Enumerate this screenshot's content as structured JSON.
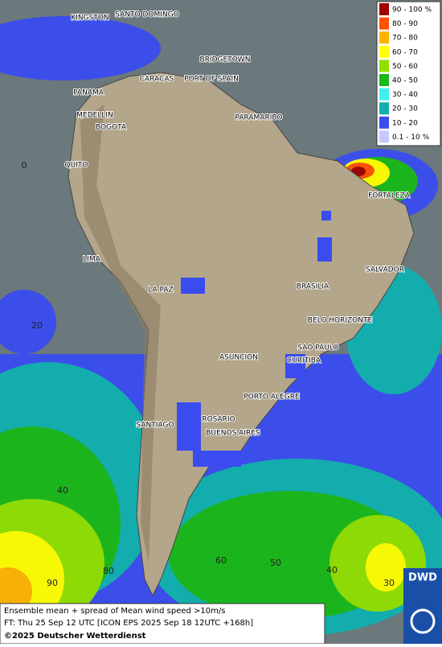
{
  "legend": [
    {
      "label": "90 - 100 %",
      "color": "#a00000"
    },
    {
      "label": "80 - 90",
      "color": "#ff5000"
    },
    {
      "label": "70 - 80",
      "color": "#ffb400"
    },
    {
      "label": "60 - 70",
      "color": "#ffff00"
    },
    {
      "label": "50 - 60",
      "color": "#90e000"
    },
    {
      "label": "40 - 50",
      "color": "#18b818"
    },
    {
      "label": "30 - 40",
      "color": "#40f0f0"
    },
    {
      "label": "20 - 30",
      "color": "#10b0b0"
    },
    {
      "label": "10 - 20",
      "color": "#3a4cf0"
    },
    {
      "label": "0.1 - 10 %",
      "color": "#c8c8ff"
    }
  ],
  "cities": [
    "KINGSTON",
    "SANTO DOMINGO",
    "BRIDGETOWN",
    "PANAMA",
    "CARACAS",
    "PORT OF SPAIN",
    "MEDELLIN",
    "BOGOTA",
    "PARAMARIBO",
    "QUITO",
    "FORTALEZA",
    "LIMA",
    "SALVADOR",
    "LA PAZ",
    "BRASILIA",
    "BELO HORIZONTE",
    "SAO PAULO",
    "CURITIBA",
    "ASUNCION",
    "PORTO ALEGRE",
    "ROSARIO",
    "SANTIAGO",
    "BUENOS AIRES"
  ],
  "grid_labels": [
    "0",
    "20",
    "40",
    "80",
    "90",
    "60",
    "50",
    "40",
    "30"
  ],
  "footer": {
    "line1": "Ensemble mean + spread of Mean wind speed >10m/s",
    "line2": "FT: Thu 25 Sep 12 UTC [ICON EPS 2025 Sep 18 12UTC +168h]",
    "copyright": "©2025 Deutscher Wetterdienst"
  },
  "logo": "DWD"
}
